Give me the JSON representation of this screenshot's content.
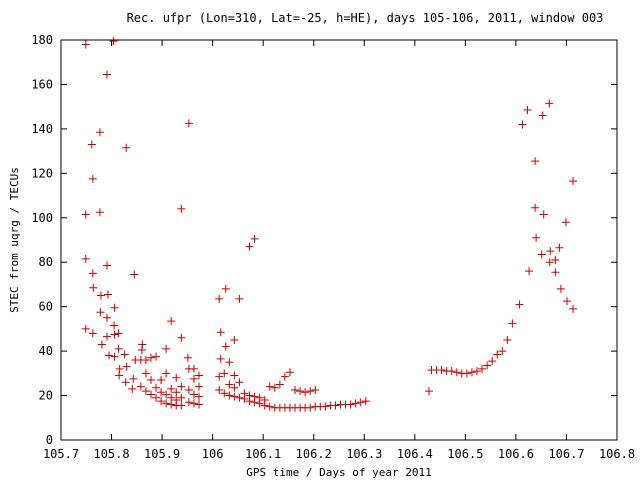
{
  "chart_data": {
    "type": "scatter",
    "title": "Rec. ufpr (Lon=310, Lat=-25, h=HE), days 105-106, 2011, window 003",
    "xlabel": "GPS time / Days of year 2011",
    "ylabel": "STEC from uqrg / TECUs",
    "xlim": [
      105.7,
      106.8
    ],
    "ylim": [
      0,
      180
    ],
    "grid": false,
    "legend": "none",
    "marker": "+",
    "color": "#cc0000",
    "x_ticks": [
      105.7,
      105.8,
      105.9,
      106.0,
      106.1,
      106.2,
      106.3,
      106.4,
      106.5,
      106.6,
      106.7,
      106.8
    ],
    "x_tick_labels": [
      "105.7",
      "105.8",
      "105.9",
      "106",
      "106.1",
      "106.2",
      "106.3",
      "106.4",
      "106.5",
      "106.6",
      "106.7",
      "106.8"
    ],
    "y_ticks": [
      0,
      20,
      40,
      60,
      80,
      100,
      120,
      140,
      160,
      180
    ],
    "y_tick_labels": [
      "0",
      "20",
      "40",
      "60",
      "80",
      "100",
      "120",
      "140",
      "160",
      "180"
    ],
    "points": [
      [
        105.749,
        178
      ],
      [
        105.749,
        101.5
      ],
      [
        105.749,
        81.5
      ],
      [
        105.749,
        50
      ],
      [
        105.761,
        133
      ],
      [
        105.763,
        117.5
      ],
      [
        105.763,
        75
      ],
      [
        105.764,
        68.5
      ],
      [
        105.763,
        48
      ],
      [
        105.777,
        138.5
      ],
      [
        105.777,
        102.5
      ],
      [
        105.779,
        65
      ],
      [
        105.778,
        57.5
      ],
      [
        105.781,
        43
      ],
      [
        105.791,
        164.5
      ],
      [
        105.791,
        78.5
      ],
      [
        105.793,
        65.5
      ],
      [
        105.791,
        55
      ],
      [
        105.791,
        46.5
      ],
      [
        105.795,
        38
      ],
      [
        105.804,
        179.5
      ],
      [
        105.806,
        59.5
      ],
      [
        105.805,
        51.5
      ],
      [
        105.806,
        47.5
      ],
      [
        105.806,
        37.5
      ],
      [
        105.814,
        48
      ],
      [
        105.814,
        41
      ],
      [
        105.816,
        32
      ],
      [
        105.815,
        29
      ],
      [
        105.829,
        131.5
      ],
      [
        105.826,
        38.5
      ],
      [
        105.83,
        33
      ],
      [
        105.828,
        26
      ],
      [
        105.845,
        74.5
      ],
      [
        105.847,
        36
      ],
      [
        105.843,
        27.5
      ],
      [
        105.841,
        23
      ],
      [
        105.861,
        43
      ],
      [
        105.86,
        40.5
      ],
      [
        105.858,
        36
      ],
      [
        105.858,
        24
      ],
      [
        105.868,
        36
      ],
      [
        105.868,
        30
      ],
      [
        105.868,
        22
      ],
      [
        105.878,
        37
      ],
      [
        105.878,
        27
      ],
      [
        105.878,
        20.5
      ],
      [
        105.888,
        37.5
      ],
      [
        105.888,
        23.5
      ],
      [
        105.888,
        19
      ],
      [
        105.898,
        27
      ],
      [
        105.898,
        21.5
      ],
      [
        105.898,
        17.5
      ],
      [
        105.908,
        41
      ],
      [
        105.908,
        30
      ],
      [
        105.908,
        20.5
      ],
      [
        105.908,
        16.5
      ],
      [
        105.918,
        53.5
      ],
      [
        105.918,
        23
      ],
      [
        105.918,
        19
      ],
      [
        105.918,
        16
      ],
      [
        105.928,
        28
      ],
      [
        105.928,
        21.5
      ],
      [
        105.928,
        18
      ],
      [
        105.928,
        15.5
      ],
      [
        105.938,
        104
      ],
      [
        105.938,
        46
      ],
      [
        105.938,
        24
      ],
      [
        105.938,
        19
      ],
      [
        105.938,
        15.5
      ],
      [
        105.953,
        142.5
      ],
      [
        105.951,
        37
      ],
      [
        105.953,
        32
      ],
      [
        105.953,
        22.5
      ],
      [
        105.953,
        17
      ],
      [
        105.963,
        32
      ],
      [
        105.963,
        27.5
      ],
      [
        105.963,
        20.5
      ],
      [
        105.963,
        16.5
      ],
      [
        105.973,
        29
      ],
      [
        105.973,
        24
      ],
      [
        105.973,
        19.5
      ],
      [
        105.973,
        16
      ],
      [
        106.013,
        63.5
      ],
      [
        106.016,
        48.5
      ],
      [
        106.016,
        36.5
      ],
      [
        106.013,
        28.5
      ],
      [
        106.013,
        22.5
      ],
      [
        106.026,
        68
      ],
      [
        106.026,
        42
      ],
      [
        106.023,
        30
      ],
      [
        106.023,
        21
      ],
      [
        106.033,
        35
      ],
      [
        106.033,
        25
      ],
      [
        106.033,
        20
      ],
      [
        106.043,
        45
      ],
      [
        106.043,
        29
      ],
      [
        106.043,
        23.5
      ],
      [
        106.043,
        19.5
      ],
      [
        106.053,
        63.5
      ],
      [
        106.053,
        26
      ],
      [
        106.053,
        19
      ],
      [
        106.063,
        21
      ],
      [
        106.063,
        18.5
      ],
      [
        106.073,
        87
      ],
      [
        106.073,
        20
      ],
      [
        106.073,
        17.5
      ],
      [
        106.083,
        90.5
      ],
      [
        106.083,
        19.5
      ],
      [
        106.083,
        17
      ],
      [
        106.093,
        19
      ],
      [
        106.093,
        16.5
      ],
      [
        106.103,
        18
      ],
      [
        106.103,
        15.5
      ],
      [
        106.113,
        24
      ],
      [
        106.113,
        15
      ],
      [
        106.123,
        23.5
      ],
      [
        106.123,
        14.5
      ],
      [
        106.133,
        25
      ],
      [
        106.133,
        14.5
      ],
      [
        106.143,
        28.5
      ],
      [
        106.143,
        14.5
      ],
      [
        106.153,
        30.5
      ],
      [
        106.153,
        14.5
      ],
      [
        106.163,
        22.5
      ],
      [
        106.163,
        14.5
      ],
      [
        106.173,
        22
      ],
      [
        106.173,
        14.5
      ],
      [
        106.183,
        21.5
      ],
      [
        106.183,
        14.5
      ],
      [
        106.193,
        22
      ],
      [
        106.193,
        14.5
      ],
      [
        106.203,
        22.5
      ],
      [
        106.203,
        15
      ],
      [
        106.213,
        15
      ],
      [
        106.223,
        15
      ],
      [
        106.233,
        15.5
      ],
      [
        106.243,
        15.5
      ],
      [
        106.253,
        16
      ],
      [
        106.263,
        16
      ],
      [
        106.273,
        16
      ],
      [
        106.283,
        16.5
      ],
      [
        106.293,
        17
      ],
      [
        106.303,
        17.5
      ],
      [
        106.428,
        22
      ],
      [
        106.433,
        31.5
      ],
      [
        106.443,
        31.5
      ],
      [
        106.453,
        31.5
      ],
      [
        106.463,
        31
      ],
      [
        106.473,
        31
      ],
      [
        106.483,
        30.5
      ],
      [
        106.493,
        30
      ],
      [
        106.503,
        30
      ],
      [
        106.513,
        30.5
      ],
      [
        106.523,
        31
      ],
      [
        106.533,
        32
      ],
      [
        106.543,
        33.5
      ],
      [
        106.553,
        35.5
      ],
      [
        106.563,
        38.5
      ],
      [
        106.573,
        40
      ],
      [
        106.583,
        45
      ],
      [
        106.593,
        52.5
      ],
      [
        106.607,
        61
      ],
      [
        106.613,
        142
      ],
      [
        106.623,
        148.5
      ],
      [
        106.626,
        76
      ],
      [
        106.638,
        125.5
      ],
      [
        106.638,
        104.5
      ],
      [
        106.64,
        91
      ],
      [
        106.653,
        146
      ],
      [
        106.655,
        101.5
      ],
      [
        106.651,
        83.5
      ],
      [
        106.666,
        151.5
      ],
      [
        106.668,
        85
      ],
      [
        106.667,
        80
      ],
      [
        106.678,
        81
      ],
      [
        106.678,
        75.5
      ],
      [
        106.686,
        86.5
      ],
      [
        106.689,
        68
      ],
      [
        106.699,
        98
      ],
      [
        106.701,
        62.5
      ],
      [
        106.713,
        116.5
      ],
      [
        106.713,
        59
      ]
    ]
  }
}
